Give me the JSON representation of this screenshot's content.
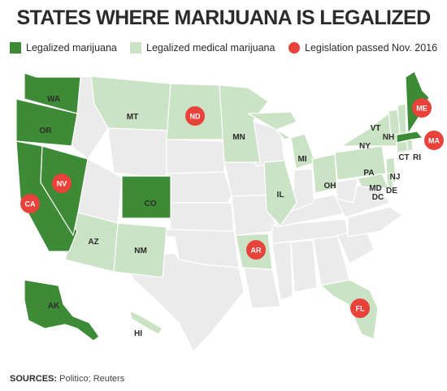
{
  "title": "STATES WHERE MARIJUANA IS LEGALIZED",
  "legend": {
    "recreational": "Legalized marijuana",
    "medical": "Legalized medical marijuana",
    "passed": "Legislation passed Nov. 2016"
  },
  "colors": {
    "recreational": "#3d8b37",
    "medical": "#c9e3c4",
    "none": "#ebebeb",
    "marker": "#e8423a"
  },
  "state_labels": {
    "WA": "WA",
    "OR": "OR",
    "CA": "CA",
    "NV": "NV",
    "CO": "CO",
    "AK": "AK",
    "MT": "MT",
    "ND": "ND",
    "MN": "MN",
    "MI": "MI",
    "IL": "IL",
    "OH": "OH",
    "PA": "PA",
    "NY": "NY",
    "VT": "VT",
    "NH": "NH",
    "ME": "ME",
    "MA": "MA",
    "CT": "CT",
    "RI": "RI",
    "NJ": "NJ",
    "MD": "MD",
    "DE": "DE",
    "DC": "DC",
    "AZ": "AZ",
    "NM": "NM",
    "AR": "AR",
    "FL": "FL",
    "HI": "HI"
  },
  "sources": {
    "label": "SOURCES:",
    "text": " Politico; Reuters"
  }
}
